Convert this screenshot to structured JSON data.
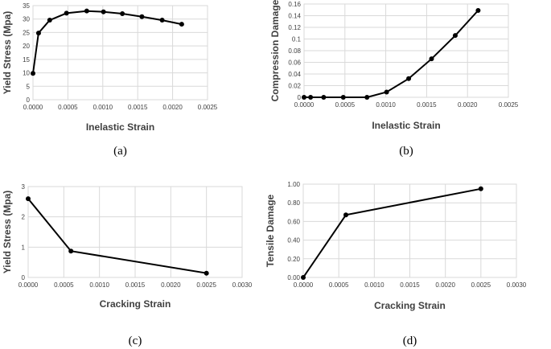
{
  "chart_data": [
    {
      "type": "line",
      "caption": "(a)",
      "xlabel": "Inelastic Strain",
      "ylabel": "Yield Stress (Mpa)",
      "xlim": [
        0,
        0.0025
      ],
      "ylim": [
        0,
        35
      ],
      "xticks": [
        "0.0000",
        "0.0005",
        "0.0010",
        "0.0015",
        "0.0020",
        "0.0025"
      ],
      "yticks": [
        "0",
        "5",
        "10",
        "15",
        "20",
        "25",
        "30",
        "35"
      ],
      "grid": true,
      "x": [
        0.0,
        8e-05,
        0.00024,
        0.00048,
        0.00077,
        0.00101,
        0.00128,
        0.00156,
        0.00185,
        0.00213
      ],
      "y": [
        9.8,
        24.8,
        29.6,
        32.2,
        33.0,
        32.7,
        32.0,
        30.9,
        29.6,
        28.1
      ]
    },
    {
      "type": "line",
      "caption": "(b)",
      "xlabel": "Inelastic Strain",
      "ylabel": "Compression Damage",
      "xlim": [
        0,
        0.0025
      ],
      "ylim": [
        0,
        0.16
      ],
      "xticks": [
        "0.0000",
        "0.0005",
        "0.0010",
        "0.0015",
        "0.0020",
        "0.0025"
      ],
      "yticks": [
        "0",
        "0.02",
        "0.04",
        "0.06",
        "0.08",
        "0.1",
        "0.12",
        "0.14",
        "0.16"
      ],
      "grid": true,
      "x": [
        0.0,
        8e-05,
        0.00024,
        0.00048,
        0.00077,
        0.00101,
        0.00128,
        0.00156,
        0.00185,
        0.00213
      ],
      "y": [
        0.0,
        0.0,
        0.0,
        0.0,
        0.0,
        0.009,
        0.032,
        0.066,
        0.106,
        0.149
      ]
    },
    {
      "type": "line",
      "caption": "(c)",
      "xlabel": "Cracking Strain",
      "ylabel": "Yield Stress (Mpa)",
      "xlim": [
        0,
        0.003
      ],
      "ylim": [
        0,
        3
      ],
      "xticks": [
        "0.0000",
        "0.0005",
        "0.0010",
        "0.0015",
        "0.0020",
        "0.0025",
        "0.0030"
      ],
      "yticks": [
        "0",
        "1",
        "2",
        "3"
      ],
      "grid": true,
      "x": [
        0.0,
        0.0006,
        0.0025
      ],
      "y": [
        2.6,
        0.87,
        0.14
      ]
    },
    {
      "type": "line",
      "caption": "(d)",
      "xlabel": "Cracking Strain",
      "ylabel": "Tensile Damage",
      "xlim": [
        0,
        0.003
      ],
      "ylim": [
        0,
        1.0
      ],
      "xticks": [
        "0.0000",
        "0.0005",
        "0.0010",
        "0.0015",
        "0.0020",
        "0.0025",
        "0.0030"
      ],
      "yticks": [
        "0.00",
        "0.20",
        "0.40",
        "0.60",
        "0.80",
        "1.00"
      ],
      "grid": true,
      "x": [
        0.0,
        0.0006,
        0.0025
      ],
      "y": [
        0.0,
        0.67,
        0.95
      ]
    }
  ]
}
